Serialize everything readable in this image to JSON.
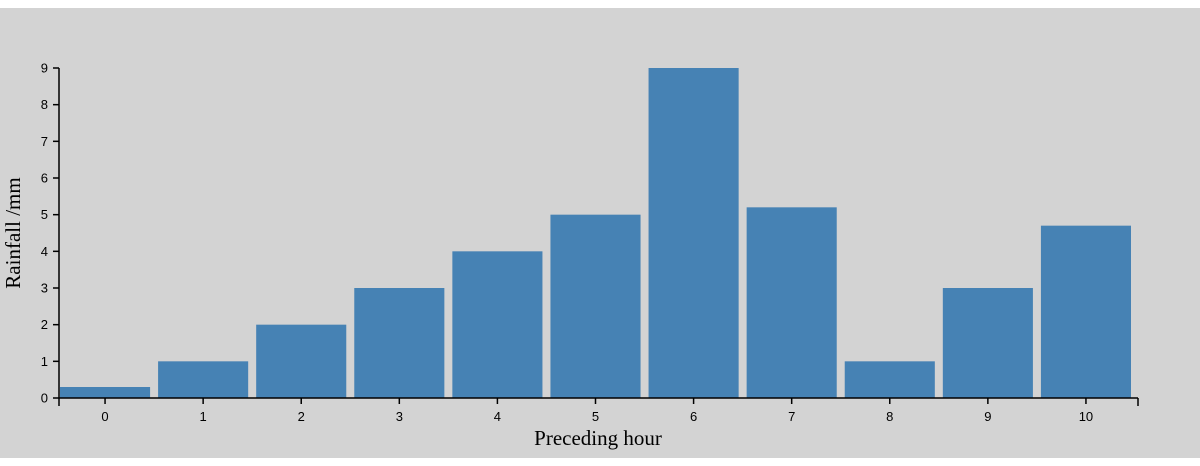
{
  "chart_data": {
    "type": "bar",
    "categories": [
      "0",
      "1",
      "2",
      "3",
      "4",
      "5",
      "6",
      "7",
      "8",
      "9",
      "10"
    ],
    "values": [
      0.3,
      1,
      2,
      3,
      4,
      5,
      9,
      5.2,
      1,
      3,
      4.7
    ],
    "xlabel": "Preceding hour",
    "ylabel": "Rainfall /mm",
    "ylim": [
      0,
      9
    ],
    "yticks": [
      "0",
      "1",
      "2",
      "3",
      "4",
      "5",
      "6",
      "7",
      "8",
      "9"
    ],
    "grid": false,
    "colors": {
      "bar": "#4682b4",
      "background": "#d3d3d3",
      "axis": "#000000"
    }
  }
}
